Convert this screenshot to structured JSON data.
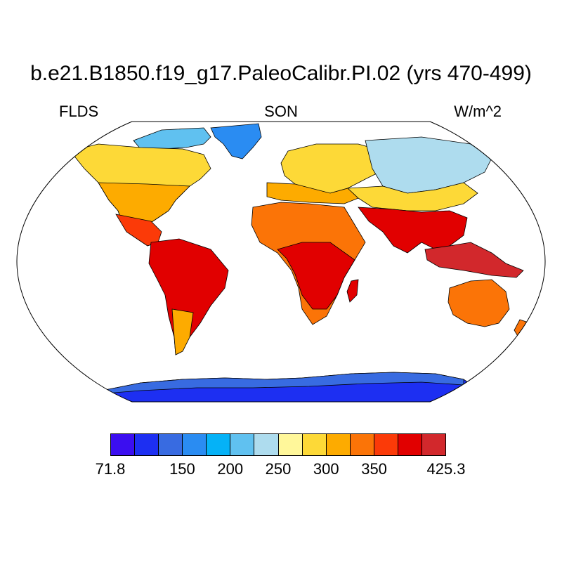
{
  "title": "b.e21.B1850.f19_g17.PaleoCalibr.PI.02 (yrs 470-499)",
  "variable": "FLDS",
  "season": "SON",
  "units": "W/m^2",
  "colorbar": {
    "colors": [
      "#3b0ef0",
      "#1d2ff2",
      "#386be1",
      "#2a8cf2",
      "#05b2f7",
      "#60c1f0",
      "#aedcee",
      "#fff79a",
      "#fdd937",
      "#fdab00",
      "#fb7407",
      "#fb3a08",
      "#e10000",
      "#d2282c"
    ],
    "labels": [
      "71.8",
      "150",
      "200",
      "250",
      "300",
      "350",
      "425.3"
    ],
    "range": [
      71.8,
      425.3
    ]
  },
  "projection": "Robinson (ellipse outline)"
}
